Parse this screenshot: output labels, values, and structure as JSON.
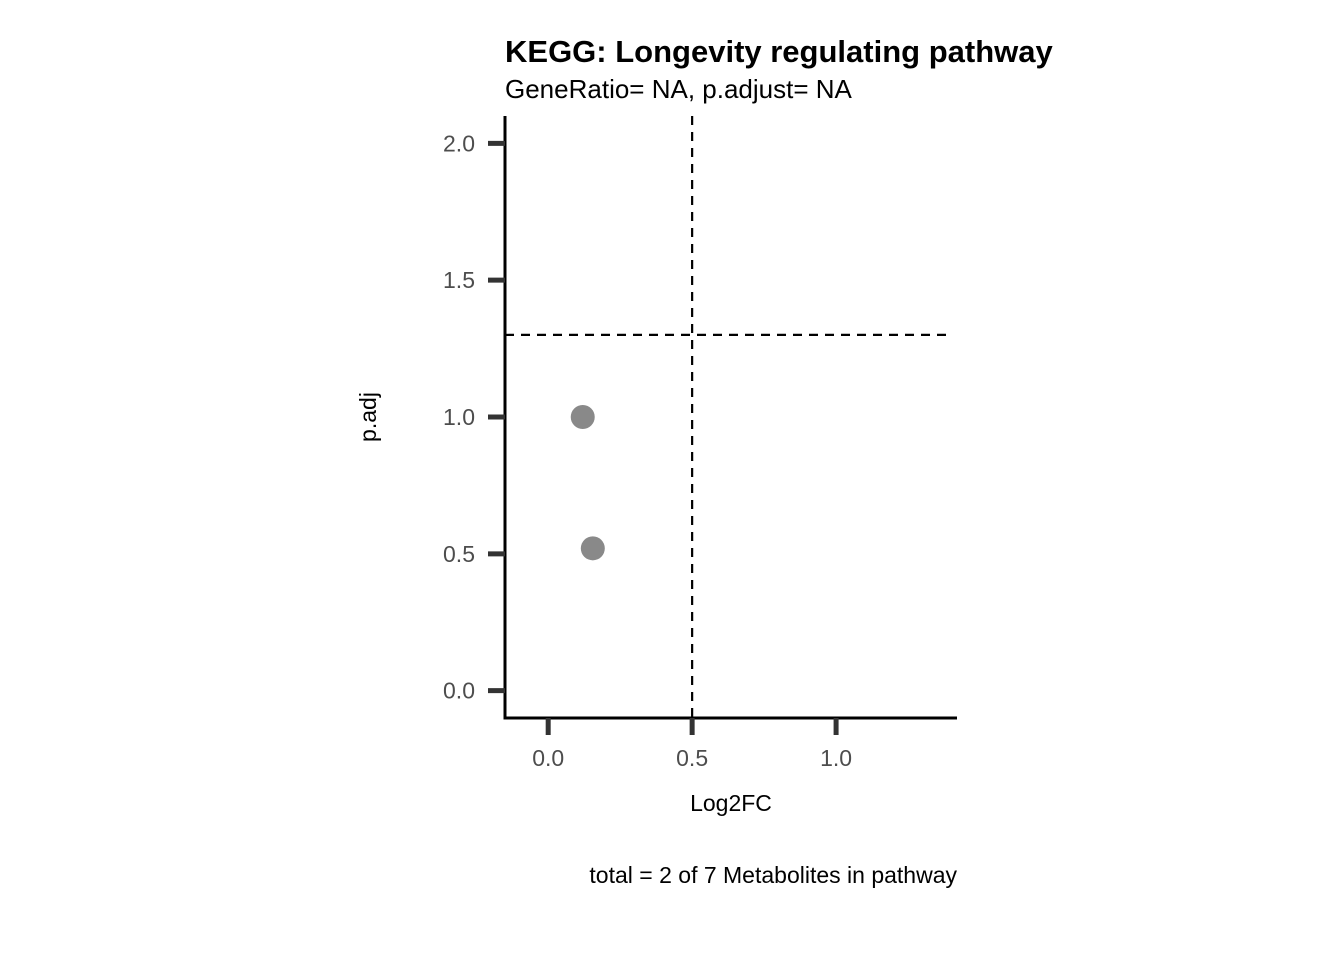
{
  "chart_data": {
    "type": "scatter",
    "title": "KEGG: Longevity regulating pathway",
    "subtitle": "GeneRatio= NA, p.adjust= NA",
    "xlabel": "Log2FC",
    "ylabel": "p.adj",
    "caption": "total = 2 of 7 Metabolites in pathway",
    "xlim": [
      -0.15,
      1.42
    ],
    "ylim": [
      -0.1,
      2.1
    ],
    "x_ticks": [
      0.0,
      0.5,
      1.0
    ],
    "x_tick_labels": [
      "0.0",
      "0.5",
      "1.0"
    ],
    "y_ticks": [
      0.0,
      0.5,
      1.0,
      1.5,
      2.0
    ],
    "y_tick_labels": [
      "0.0",
      "0.5",
      "1.0",
      "1.5",
      "2.0"
    ],
    "grid": false,
    "series": [
      {
        "color": "#898989",
        "points": [
          {
            "x": 0.12,
            "y": 1.0
          },
          {
            "x": 0.155,
            "y": 0.52
          }
        ]
      }
    ],
    "reference_lines": [
      {
        "orientation": "vertical",
        "value": 0.5,
        "style": "dashed"
      },
      {
        "orientation": "horizontal",
        "value": 1.3,
        "style": "dashed"
      }
    ]
  }
}
